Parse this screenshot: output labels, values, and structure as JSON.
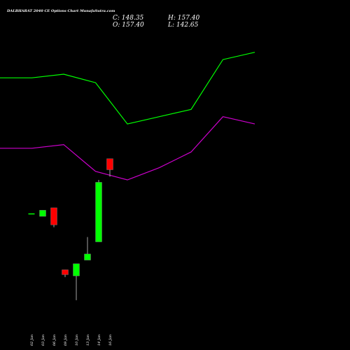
{
  "chart_data": {
    "type": "candlestick",
    "title": "DALBHARAT 2040 CE Options Chart MunafaSutra.com",
    "ohlc_readout": {
      "close": "C: 148.35",
      "open": "O: 157.40",
      "high": "H: 157.40",
      "low": "L: 142.65"
    },
    "categories": [
      "02 Jan",
      "03 Jan",
      "06 Jan",
      "09 Jan",
      "10 Jan",
      "13 Jan",
      "14 Jan",
      "16 Jan"
    ],
    "candles": [
      {
        "date": "02 Jan",
        "open": 112.0,
        "high": 112.0,
        "low": 112.0,
        "close": 112.0
      },
      {
        "date": "03 Jan",
        "open": 110.0,
        "high": 115.0,
        "low": 110.0,
        "close": 115.0
      },
      {
        "date": "06 Jan",
        "open": 117.0,
        "high": 117.0,
        "low": 101.0,
        "close": 103.0
      },
      {
        "date": "09 Jan",
        "open": 66.0,
        "high": 66.0,
        "low": 60.0,
        "close": 62.0
      },
      {
        "date": "10 Jan",
        "open": 61.0,
        "high": 71.0,
        "low": 41.0,
        "close": 71.0
      },
      {
        "date": "13 Jan",
        "open": 74.0,
        "high": 93.0,
        "low": 74.0,
        "close": 79.0
      },
      {
        "date": "14 Jan",
        "open": 89.0,
        "high": 140.0,
        "low": 89.0,
        "close": 138.0
      },
      {
        "date": "16 Jan",
        "open": 157.4,
        "high": 157.4,
        "low": 142.65,
        "close": 148.35
      }
    ],
    "bands": [
      {
        "color": "#00ff00",
        "x": [
          0,
          2,
          4,
          6,
          8,
          10,
          12,
          14,
          16
        ],
        "values": [
          224,
          224,
          227,
          220,
          186,
          192,
          198,
          239,
          245
        ]
      },
      {
        "color": "#cc00cc",
        "x": [
          0,
          2,
          4,
          6,
          8,
          10,
          12,
          14,
          16
        ],
        "values": [
          166,
          166,
          169,
          147,
          140,
          150,
          163,
          192,
          186
        ]
      }
    ],
    "colors": {
      "background": "#000000",
      "up": "#00ff00",
      "down": "#ff0000",
      "neutral": "#00ff00",
      "text": "#ffffff"
    },
    "ylim": [
      0,
      265
    ],
    "grid": false,
    "legend": "none"
  }
}
